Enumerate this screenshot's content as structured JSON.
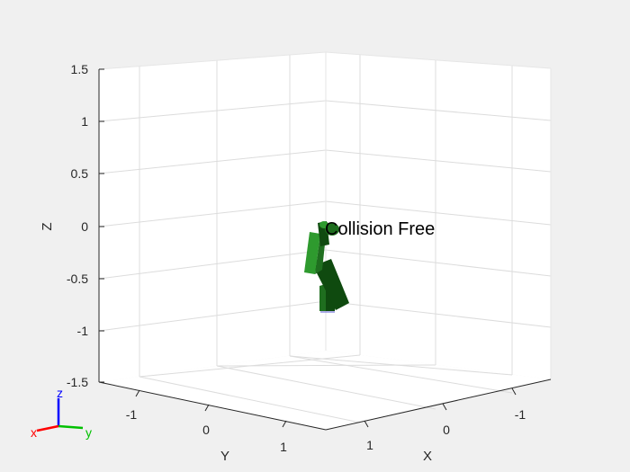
{
  "figure": {
    "background_color": "#f0f0f0",
    "pane_color": "#ffffff",
    "grid_color": "#dcdcdc"
  },
  "annotation": {
    "text": "Collision Free"
  },
  "axes": {
    "z": {
      "label": "Z",
      "ticks": [
        "1.5",
        "1",
        "0.5",
        "0",
        "-0.5",
        "-1",
        "-1.5"
      ]
    },
    "y": {
      "label": "Y",
      "ticks": [
        "-1",
        "0",
        "1"
      ]
    },
    "x": {
      "label": "X",
      "ticks": [
        "1",
        "0",
        "-1"
      ]
    }
  },
  "triad": {
    "x_label": "x",
    "y_label": "y",
    "z_label": "z",
    "x_color": "#ff0000",
    "y_color": "#00c000",
    "z_color": "#0000ff"
  },
  "robot": {
    "colors": {
      "light": "#2e9a2e",
      "dark": "#0f4a0f",
      "mid": "#1f6e1f"
    }
  }
}
